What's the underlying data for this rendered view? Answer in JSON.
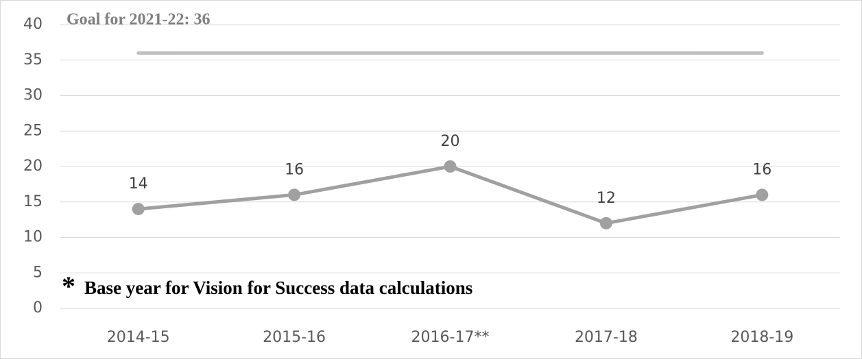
{
  "chart_data": {
    "type": "line",
    "goal_label": "Goal for 2021-22: 36",
    "footnote_marker": "*",
    "footnote": "Base year for Vision for Success data calculations",
    "categories": [
      "2014-15",
      "2015-16",
      "2016-17**",
      "2017-18",
      "2018-19"
    ],
    "series": [
      {
        "color": "#bfbfbf",
        "values": [
          36,
          36,
          36,
          36,
          36
        ]
      },
      {
        "color": "#a0a0a0",
        "values": [
          14,
          16,
          20,
          12,
          16
        ]
      }
    ],
    "ylim": [
      0,
      40
    ],
    "yticks": [
      0,
      5,
      10,
      15,
      20,
      25,
      30,
      35,
      40
    ],
    "grid": true
  }
}
